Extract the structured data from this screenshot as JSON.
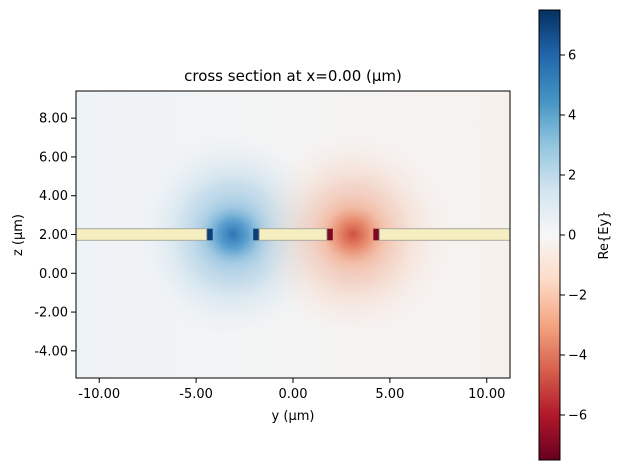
{
  "chart_data": {
    "type": "heatmap",
    "title": "cross section at x=0.00 (μm)",
    "xlabel": "y (μm)",
    "ylabel": "z (μm)",
    "colorbar_label": "Re{Ey}",
    "colormap": "RdBu",
    "xlim": [
      -11.2,
      11.2
    ],
    "ylim": [
      -5.4,
      9.4
    ],
    "clim": [
      -7.5,
      7.5
    ],
    "xticks": [
      -10,
      -5,
      0,
      5,
      10
    ],
    "xtick_labels": [
      "-10.00",
      "-5.00",
      "0.00",
      "5.00",
      "10.00"
    ],
    "yticks": [
      -4,
      -2,
      0,
      2,
      4,
      6,
      8
    ],
    "ytick_labels": [
      "-4.00",
      "-2.00",
      "0.00",
      "2.00",
      "4.00",
      "6.00",
      "8.00"
    ],
    "cbar_ticks": [
      -6,
      -4,
      -2,
      0,
      2,
      4,
      6
    ],
    "cbar_tick_labels": [
      "−6",
      "−4",
      "−2",
      "0",
      "2",
      "4",
      "6"
    ],
    "structures": [
      {
        "name": "waveguide-left",
        "y": [
          -11.2,
          -4.3
        ],
        "z": [
          1.7,
          2.3
        ]
      },
      {
        "name": "waveguide-center",
        "y": [
          -1.9,
          1.9
        ],
        "z": [
          1.7,
          2.3
        ]
      },
      {
        "name": "waveguide-right",
        "y": [
          4.3,
          11.2
        ],
        "z": [
          1.7,
          2.3
        ]
      }
    ],
    "field_lobes": [
      {
        "name": "negative-y-lobe",
        "center_y": -3.1,
        "center_z": 2.0,
        "peak_value": 7.5
      },
      {
        "name": "positive-y-lobe",
        "center_y": 3.1,
        "center_z": 2.0,
        "peak_value": -7.5
      }
    ],
    "structure_color": "#f5eec0"
  }
}
